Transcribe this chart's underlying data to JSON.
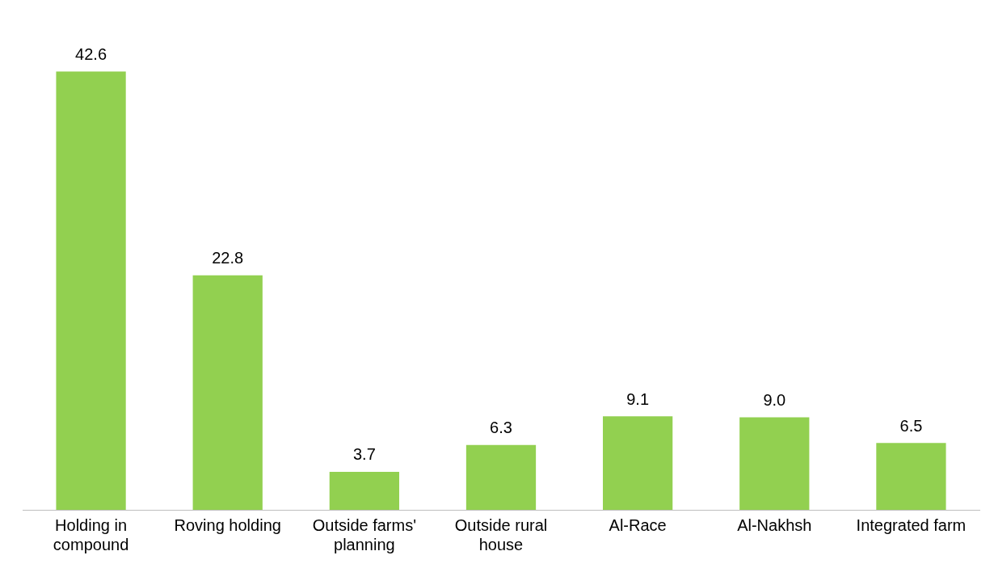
{
  "chart_data": {
    "type": "bar",
    "categories": [
      "Holding in compound",
      "Roving holding",
      "Outside farms' planning",
      "Outside rural house",
      "Al-Race",
      "Al-Nakhsh",
      "Integrated farm"
    ],
    "values": [
      42.6,
      22.8,
      3.7,
      6.3,
      9.1,
      9.0,
      6.5
    ],
    "color": "#92d050",
    "value_labels": [
      "42.6",
      "22.8",
      "3.7",
      "6.3",
      "9.1",
      "9.0",
      "6.5"
    ],
    "legend": false
  }
}
